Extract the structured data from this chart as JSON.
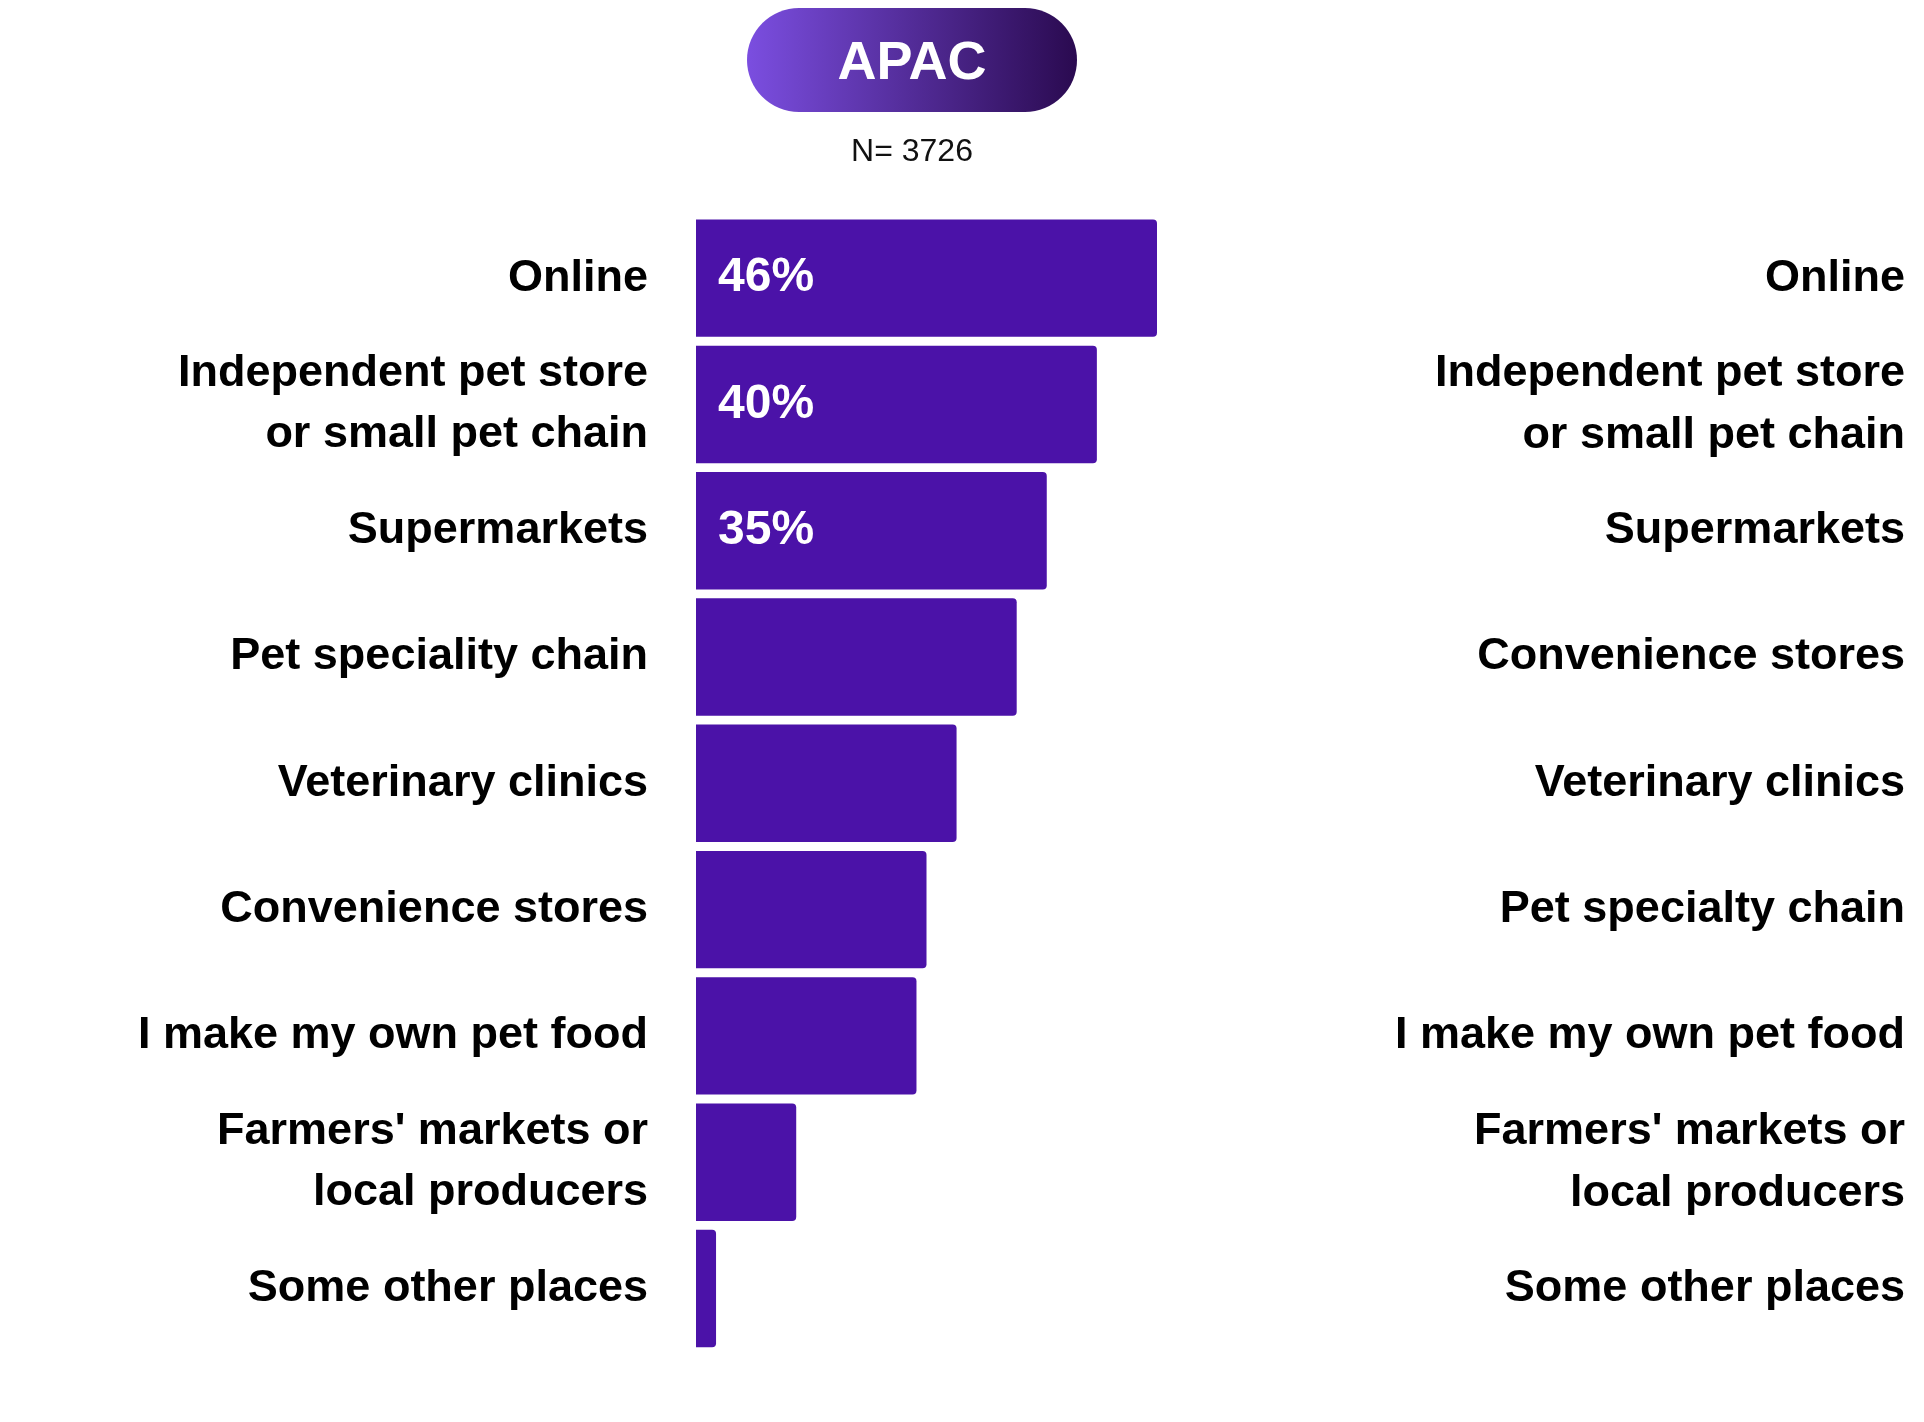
{
  "chart_data": {
    "type": "bar",
    "orientation": "horizontal",
    "title": "APAC",
    "subtitle": "N= 3726",
    "categories": [
      "Online",
      "Independent pet store or small pet chain",
      "Supermarkets",
      "Pet speciality chain",
      "Veterinary clinics",
      "Convenience stores",
      "I make my own pet food",
      "Farmers' markets or local producers",
      "Some other places"
    ],
    "values": [
      46,
      40,
      35,
      32,
      26,
      23,
      22,
      10,
      2
    ],
    "value_labels": [
      "46%",
      "40%",
      "35%",
      null,
      null,
      null,
      null,
      null,
      null
    ],
    "color": "#4b12a8",
    "annotations": [
      "Online",
      "Independent pet store or small pet chain",
      "Supermarkets",
      "Convenience stores",
      "Veterinary clinics",
      "Pet specialty chain",
      "I make my own pet food",
      "Farmers' markets or local producers",
      "Some other places"
    ]
  }
}
